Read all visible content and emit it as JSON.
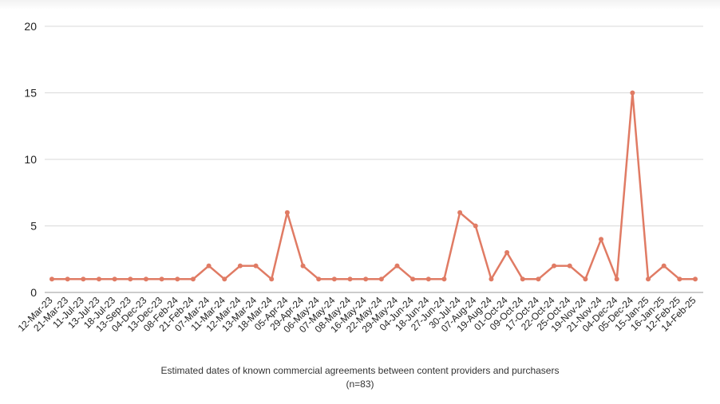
{
  "chart_data": {
    "type": "line",
    "title": "",
    "xlabel": "Estimated dates of known commercial agreements between content providers and purchasers (n=83)",
    "ylabel": "",
    "ylim": [
      0,
      20
    ],
    "yticks": [
      0,
      5,
      10,
      15,
      20
    ],
    "grid": true,
    "legend": "none",
    "color": "#e07b64",
    "categories": [
      "12-Mar-23",
      "21-Mar-23",
      "11-Jul-23",
      "13-Jul-23",
      "18-Jul-23",
      "13-Sep-23",
      "04-Dec-23",
      "13-Dec-23",
      "08-Feb-24",
      "21-Feb-24",
      "07-Mar-24",
      "11-Mar-24",
      "12-Mar-24",
      "13-Mar-24",
      "18-Mar-24",
      "05-Apr-24",
      "29-Apr-24",
      "06-May-24",
      "07-May-24",
      "08-May-24",
      "16-May-24",
      "22-May-24",
      "29-May-24",
      "04-Jun-24",
      "18-Jun-24",
      "27-Jun-24",
      "30-Jul-24",
      "07-Aug-24",
      "19-Aug-24",
      "01-Oct-24",
      "09-Oct-24",
      "17-Oct-24",
      "22-Oct-24",
      "25-Oct-24",
      "19-Nov-24",
      "21-Nov-24",
      "04-Dec-24",
      "05-Dec-24",
      "15-Jan-25",
      "16-Jan-25",
      "12-Feb-25",
      "14-Feb-25"
    ],
    "values": [
      1,
      1,
      1,
      1,
      1,
      1,
      1,
      1,
      1,
      1,
      2,
      1,
      2,
      2,
      1,
      6,
      2,
      1,
      1,
      1,
      1,
      1,
      2,
      1,
      1,
      1,
      6,
      5,
      1,
      3,
      1,
      1,
      2,
      2,
      1,
      4,
      1,
      15,
      1,
      2,
      1,
      1
    ]
  }
}
